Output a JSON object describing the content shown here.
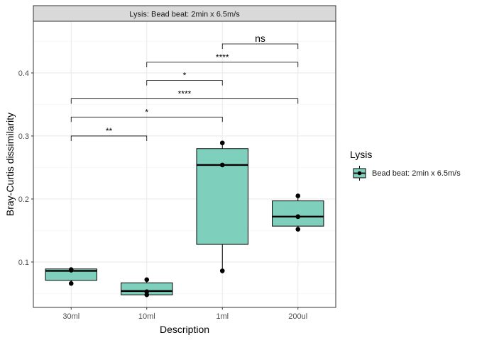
{
  "chart_data": {
    "type": "boxplot",
    "facet_label": "Lysis: Bead beat: 2min x 6.5m/s",
    "xlabel": "Description",
    "ylabel": "Bray-Curtis dissimilarity",
    "categories": [
      "30ml",
      "10ml",
      "1ml",
      "200ul"
    ],
    "ylim": [
      0.028,
      0.482
    ],
    "yticks": [
      0.1,
      0.2,
      0.3,
      0.4
    ],
    "ytick_labels": [
      "0.1",
      "0.2",
      "0.3",
      "0.4"
    ],
    "grid": true,
    "boxes": [
      {
        "category": "30ml",
        "q1": 0.071,
        "median": 0.086,
        "q3": 0.089,
        "whisker_low": 0.066,
        "whisker_high": 0.089,
        "points": [
          0.066,
          0.087,
          0.088
        ]
      },
      {
        "category": "10ml",
        "q1": 0.048,
        "median": 0.054,
        "q3": 0.067,
        "whisker_low": 0.048,
        "whisker_high": 0.072,
        "points": [
          0.048,
          0.053,
          0.072
        ]
      },
      {
        "category": "1ml",
        "q1": 0.128,
        "median": 0.254,
        "q3": 0.28,
        "whisker_low": 0.086,
        "whisker_high": 0.289,
        "points": [
          0.086,
          0.254,
          0.289
        ]
      },
      {
        "category": "200ul",
        "q1": 0.157,
        "median": 0.172,
        "q3": 0.197,
        "whisker_low": 0.152,
        "whisker_high": 0.205,
        "points": [
          0.152,
          0.172,
          0.205
        ]
      }
    ],
    "significance": [
      {
        "from": "30ml",
        "to": "10ml",
        "y": 0.3,
        "label": "**"
      },
      {
        "from": "30ml",
        "to": "1ml",
        "y": 0.33,
        "label": "*"
      },
      {
        "from": "30ml",
        "to": "200ul",
        "y": 0.359,
        "label": "****"
      },
      {
        "from": "10ml",
        "to": "1ml",
        "y": 0.388,
        "label": "*"
      },
      {
        "from": "10ml",
        "to": "200ul",
        "y": 0.417,
        "label": "****"
      },
      {
        "from": "1ml",
        "to": "200ul",
        "y": 0.446,
        "label": "ns"
      }
    ],
    "legend": {
      "title": "Lysis",
      "entries": [
        "Bead beat: 2min x 6.5m/s"
      ],
      "position": "right"
    },
    "colors": {
      "box_fill": "#7fcfbd",
      "strip_fill": "#d9d9d9",
      "grid_major": "#ebebeb",
      "grid_minor": "#f5f5f5",
      "ink": "#000000",
      "axis_text": "#4d4d4d"
    }
  }
}
